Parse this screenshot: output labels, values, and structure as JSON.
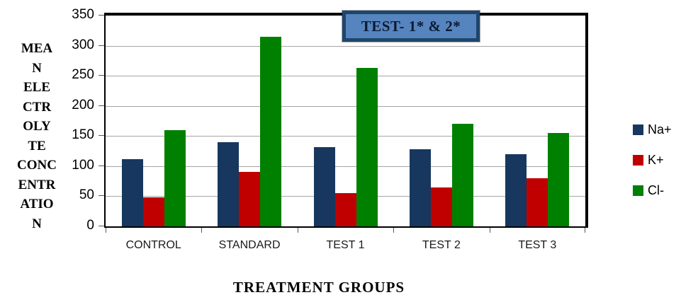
{
  "chart_data": {
    "type": "bar",
    "title": "TEST- 1* & 2*",
    "xlabel": "TREATMENT GROUPS",
    "ylabel": "MEAN ELECTROLYTE CONCENTRATION",
    "ylabel_lines": [
      "MEA",
      "N",
      "ELE",
      "CTR",
      "OLY",
      "TE",
      "CONC",
      "ENTR",
      "ATIO",
      "N"
    ],
    "categories": [
      "CONTROL",
      "STANDARD",
      "TEST 1",
      "TEST 2",
      "TEST 3"
    ],
    "series": [
      {
        "name": "Na+",
        "color": "#17375e",
        "values": [
          112,
          140,
          131,
          128,
          120
        ]
      },
      {
        "name": "K+",
        "color": "#c00000",
        "values": [
          48,
          90,
          55,
          65,
          80
        ]
      },
      {
        "name": "Cl-",
        "color": "#008000",
        "values": [
          160,
          315,
          263,
          170,
          155
        ]
      }
    ],
    "ylim": [
      0,
      350
    ],
    "ytick_step": 50,
    "yticks": [
      350,
      300,
      250,
      200,
      150,
      100,
      50,
      0
    ],
    "grid": true,
    "gridline_color": "#a6a6a6",
    "legend_position": "right",
    "title_box_fill": "#5684be",
    "title_box_border": "#20456b"
  }
}
